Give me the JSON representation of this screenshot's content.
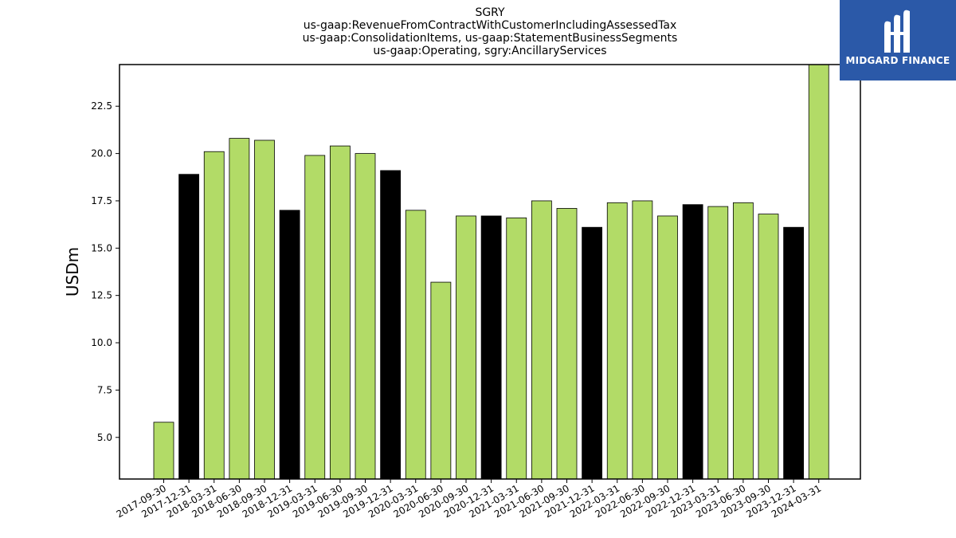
{
  "chart_data": {
    "type": "bar",
    "title_lines": [
      "SGRY",
      "us-gaap:RevenueFromContractWithCustomerIncludingAssessedTax",
      "us-gaap:ConsolidationItems, us-gaap:StatementBusinessSegments",
      "us-gaap:Operating, sgry:AncillaryServices"
    ],
    "xlabel": "",
    "ylabel": "USDm",
    "categories": [
      "2017-09-30",
      "2017-12-31",
      "2018-03-31",
      "2018-06-30",
      "2018-09-30",
      "2018-12-31",
      "2019-03-31",
      "2019-06-30",
      "2019-09-30",
      "2019-12-31",
      "2020-03-31",
      "2020-06-30",
      "2020-09-30",
      "2020-12-31",
      "2021-03-31",
      "2021-06-30",
      "2021-09-30",
      "2021-12-31",
      "2022-03-31",
      "2022-06-30",
      "2022-09-30",
      "2022-12-31",
      "2023-03-31",
      "2023-06-30",
      "2023-09-30",
      "2023-12-31",
      "2024-03-31"
    ],
    "values": [
      5.8,
      18.9,
      20.1,
      20.8,
      20.7,
      17.0,
      19.9,
      20.4,
      20.0,
      19.1,
      17.0,
      13.2,
      16.7,
      16.7,
      16.6,
      17.5,
      17.1,
      16.1,
      17.4,
      17.5,
      16.7,
      17.3,
      17.2,
      17.4,
      16.8,
      16.1,
      24.7
    ],
    "bar_colors": [
      "#b2db67",
      "#000000",
      "#b2db67",
      "#b2db67",
      "#b2db67",
      "#000000",
      "#b2db67",
      "#b2db67",
      "#b2db67",
      "#000000",
      "#b2db67",
      "#b2db67",
      "#b2db67",
      "#000000",
      "#b2db67",
      "#b2db67",
      "#b2db67",
      "#000000",
      "#b2db67",
      "#b2db67",
      "#b2db67",
      "#000000",
      "#b2db67",
      "#b2db67",
      "#b2db67",
      "#000000",
      "#b2db67"
    ],
    "ylim": [
      2.8,
      24.7
    ],
    "yticks": [
      5.0,
      7.5,
      10.0,
      12.5,
      15.0,
      17.5,
      20.0,
      22.5
    ],
    "grid": false,
    "legend": "none"
  },
  "logo": {
    "text": "MIDGARD FINANCE",
    "background": "#2b59a8"
  }
}
